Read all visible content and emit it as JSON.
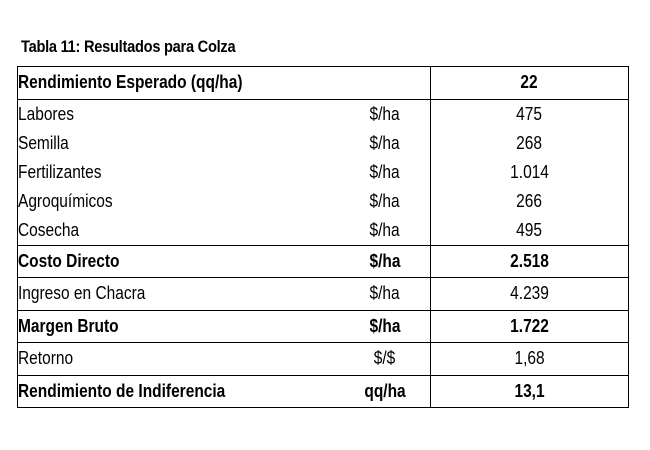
{
  "table": {
    "title": "Tabla 11: Resultados para Colza",
    "header": {
      "label": "Rendimiento Esperado (qq/ha)",
      "unit": "",
      "value": "22"
    },
    "rows": [
      {
        "label": "Labores",
        "unit": "$/ha",
        "value": "475"
      },
      {
        "label": "Semilla",
        "unit": "$/ha",
        "value": "268"
      },
      {
        "label": "Fertilizantes",
        "unit": "$/ha",
        "value": "1.014"
      },
      {
        "label": "Agroquímicos",
        "unit": "$/ha",
        "value": "266"
      },
      {
        "label": "Cosecha",
        "unit": "$/ha",
        "value": "495"
      },
      {
        "label": "Costo Directo",
        "unit": "$/ha",
        "value": "2.518"
      },
      {
        "label": "Ingreso en Chacra",
        "unit": "$/ha",
        "value": "4.239"
      },
      {
        "label": "Margen Bruto",
        "unit": "$/ha",
        "value": "1.722"
      },
      {
        "label": "Retorno",
        "unit": "$/$",
        "value": "1,68"
      },
      {
        "label": "Rendimiento de Indiferencia",
        "unit": "qq/ha",
        "value": "13,1"
      }
    ]
  }
}
